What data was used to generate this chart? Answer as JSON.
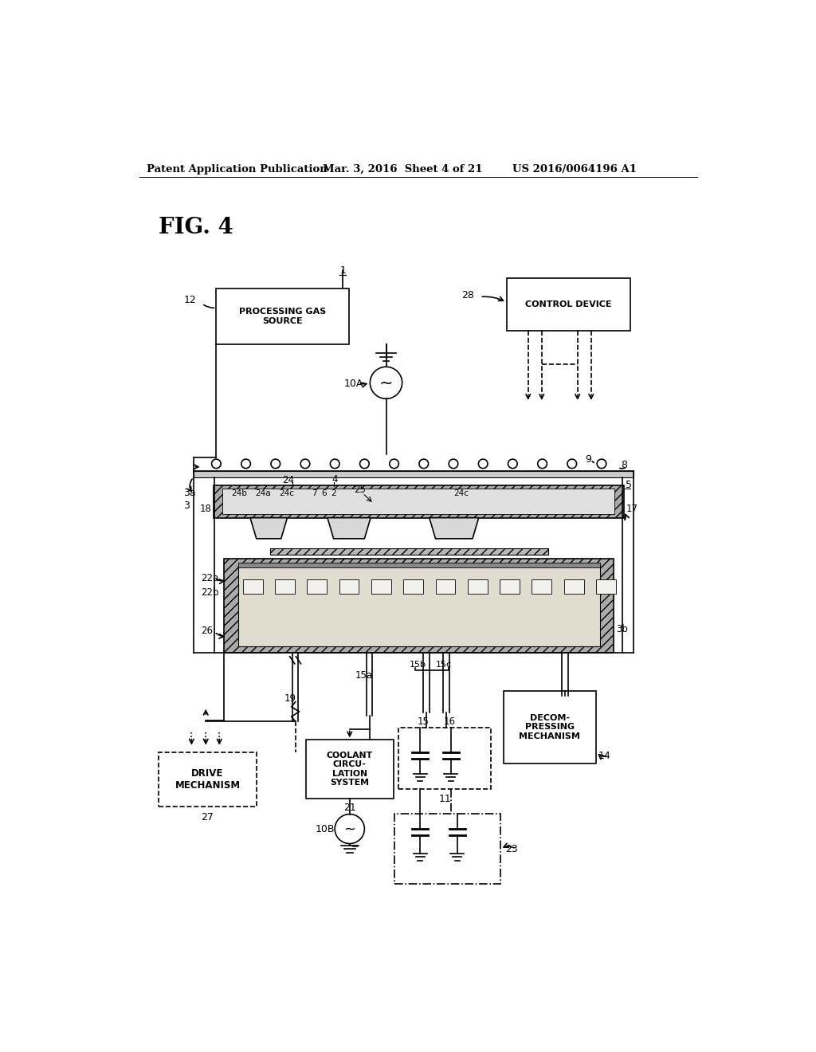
{
  "bg_color": "#ffffff",
  "header_left": "Patent Application Publication",
  "header_mid": "Mar. 3, 2016  Sheet 4 of 21",
  "header_right": "US 2016/0064196 A1",
  "fig_label": "FIG. 4"
}
